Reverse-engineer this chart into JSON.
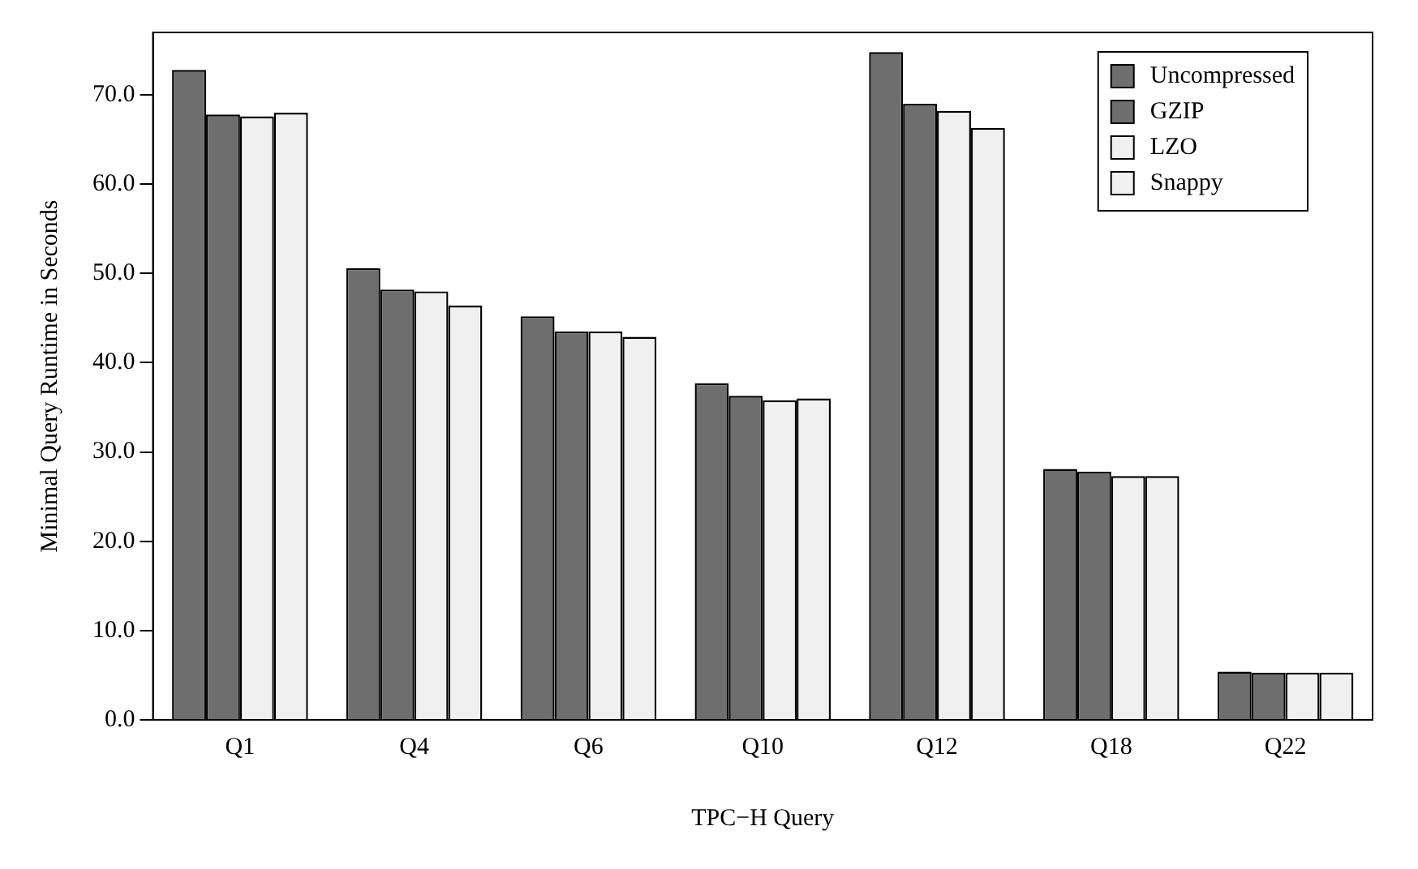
{
  "chart_data": {
    "type": "bar",
    "xlabel": "TPC−H Query",
    "ylabel": "Minimal Query Runtime in Seconds",
    "categories": [
      "Q1",
      "Q4",
      "Q6",
      "Q10",
      "Q12",
      "Q18",
      "Q22"
    ],
    "series": [
      {
        "name": "Uncompressed",
        "color": "#6e6e6e",
        "values": [
          72.8,
          50.6,
          45.2,
          37.7,
          74.8,
          28.1,
          5.4
        ]
      },
      {
        "name": "GZIP",
        "color": "#6e6e6e",
        "values": [
          67.8,
          48.2,
          43.5,
          36.3,
          69.0,
          27.8,
          5.3
        ]
      },
      {
        "name": "LZO",
        "color": "#f0f0f0",
        "values": [
          67.6,
          48.0,
          43.5,
          35.8,
          68.2,
          27.3,
          5.3
        ]
      },
      {
        "name": "Snappy",
        "color": "#f0f0f0",
        "values": [
          68.0,
          46.4,
          42.9,
          36.0,
          66.3,
          27.3,
          5.3
        ]
      }
    ],
    "ylim": [
      0,
      77
    ],
    "yticks": [
      {
        "value": 0,
        "label": "0.0"
      },
      {
        "value": 10,
        "label": "10.0"
      },
      {
        "value": 20,
        "label": "20.0"
      },
      {
        "value": 30,
        "label": "30.0"
      },
      {
        "value": 40,
        "label": "40.0"
      },
      {
        "value": 50,
        "label": "50.0"
      },
      {
        "value": 60,
        "label": "60.0"
      },
      {
        "value": 70,
        "label": "70.0"
      }
    ],
    "grid": false,
    "legend": "top right"
  }
}
